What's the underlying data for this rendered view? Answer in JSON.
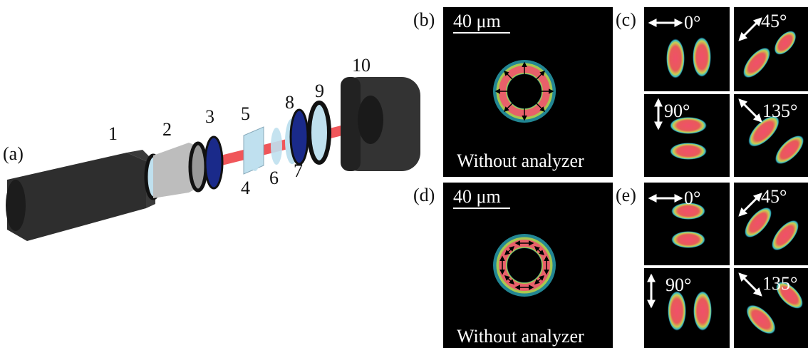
{
  "panel_a": {
    "label": "(a)",
    "components": [
      "1",
      "2",
      "3",
      "4",
      "5",
      "6",
      "7",
      "8",
      "9",
      "10"
    ]
  },
  "panel_b": {
    "label": "(b)",
    "scale_bar": "40 μm",
    "caption": "Without analyzer"
  },
  "panel_c": {
    "label": "(c)",
    "angles": [
      "0°",
      "45°",
      "90°",
      "135°"
    ]
  },
  "panel_d": {
    "label": "(d)",
    "scale_bar": "40 μm",
    "caption": "Without analyzer"
  },
  "panel_e": {
    "label": "(e)",
    "angles": [
      "0°",
      "45°",
      "90°",
      "135°"
    ]
  }
}
